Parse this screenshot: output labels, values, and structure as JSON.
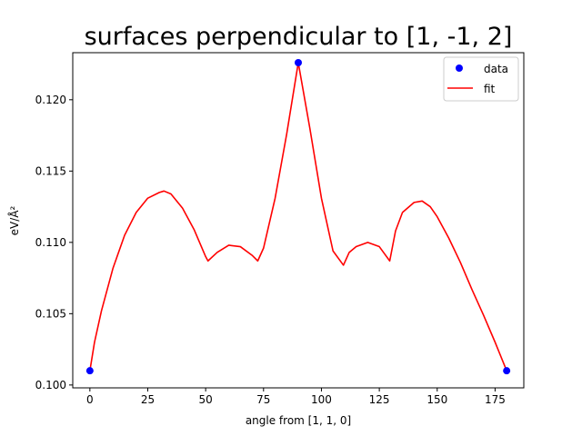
{
  "chart_data": {
    "type": "scatter",
    "title": "surfaces perpendicular to [1, -1, 2]",
    "xlabel": "angle from [1, 1, 0]",
    "ylabel": "eV/Å²",
    "xlim": [
      -7.4,
      187.4
    ],
    "ylim": [
      0.0998,
      0.1233
    ],
    "x_ticks": [
      0,
      25,
      50,
      75,
      100,
      125,
      150,
      175
    ],
    "y_ticks": [
      0.1,
      0.105,
      0.11,
      0.115,
      0.12
    ],
    "y_tick_labels": [
      "0.100",
      "0.105",
      "0.110",
      "0.115",
      "0.120"
    ],
    "grid": false,
    "legend": {
      "position": "upper right",
      "entries": [
        "data",
        "fit"
      ]
    },
    "series": [
      {
        "name": "data",
        "kind": "scatter",
        "color": "#0000ff",
        "x": [
          0,
          90,
          180
        ],
        "y": [
          0.101,
          0.1226,
          0.101
        ]
      },
      {
        "name": "fit",
        "kind": "line",
        "color": "#ff0000",
        "x": [
          0,
          2,
          5,
          10,
          15,
          20,
          25,
          30,
          32,
          35,
          40,
          45,
          50,
          51,
          55,
          60,
          65,
          70,
          72.5,
          75,
          80,
          85,
          90,
          95,
          100,
          105,
          109.5,
          112,
          115,
          120,
          125,
          129.5,
          132,
          135,
          140,
          143.5,
          147,
          150,
          155,
          160,
          165,
          170,
          175,
          180
        ],
        "y": [
          0.101,
          0.103,
          0.1052,
          0.1082,
          0.1105,
          0.1121,
          0.1131,
          0.1135,
          0.1136,
          0.1134,
          0.1124,
          0.1109,
          0.109,
          0.1087,
          0.1093,
          0.1098,
          0.1097,
          0.1091,
          0.1087,
          0.1096,
          0.1131,
          0.1176,
          0.1226,
          0.118,
          0.1131,
          0.1094,
          0.1084,
          0.1093,
          0.1097,
          0.11,
          0.1097,
          0.1087,
          0.1108,
          0.1121,
          0.1128,
          0.1129,
          0.1125,
          0.1118,
          0.1103,
          0.1086,
          0.1067,
          0.1049,
          0.103,
          0.101
        ]
      }
    ]
  }
}
